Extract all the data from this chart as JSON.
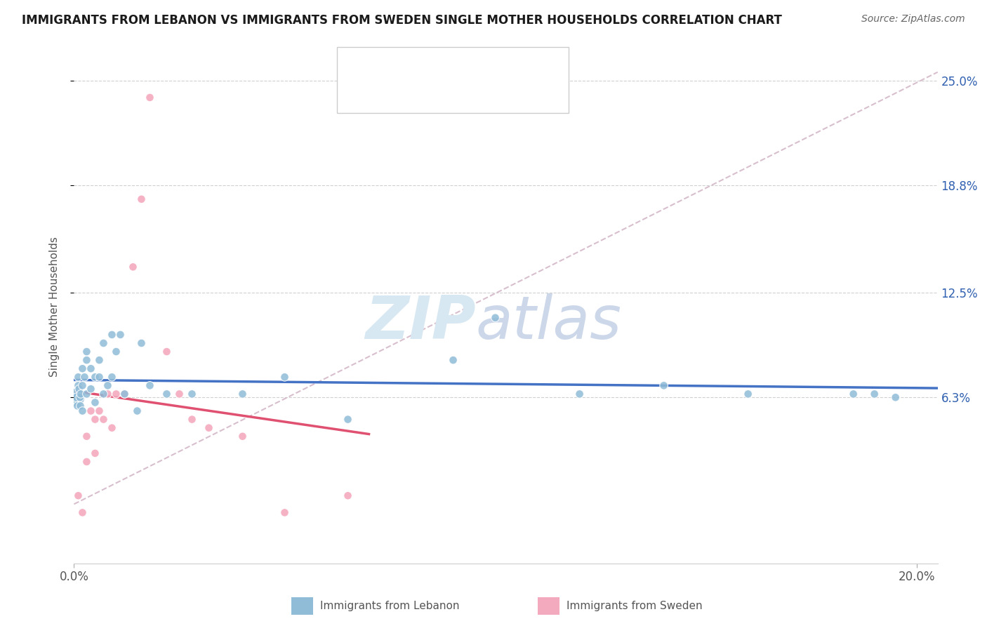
{
  "title": "IMMIGRANTS FROM LEBANON VS IMMIGRANTS FROM SWEDEN SINGLE MOTHER HOUSEHOLDS CORRELATION CHART",
  "source": "Source: ZipAtlas.com",
  "ylabel": "Single Mother Households",
  "xlim": [
    0.0,
    0.205
  ],
  "ylim": [
    -0.035,
    0.268
  ],
  "ytick_values": [
    0.063,
    0.125,
    0.188,
    0.25
  ],
  "ytick_labels": [
    "6.3%",
    "12.5%",
    "18.8%",
    "25.0%"
  ],
  "xtick_values": [
    0.0,
    0.2
  ],
  "xtick_labels": [
    "0.0%",
    "20.0%"
  ],
  "color_lebanon": "#90bcd8",
  "color_sweden": "#f4aabe",
  "color_trendline_lebanon": "#4472c4",
  "color_trendline_sweden": "#e05070",
  "color_diagonal": "#d4b8c8",
  "legend_text_color": "#3060b0",
  "lebanon_x": [
    0.0004,
    0.0006,
    0.0008,
    0.001,
    0.001,
    0.0012,
    0.0014,
    0.0015,
    0.0016,
    0.002,
    0.002,
    0.002,
    0.0025,
    0.003,
    0.003,
    0.003,
    0.004,
    0.004,
    0.005,
    0.005,
    0.006,
    0.006,
    0.007,
    0.007,
    0.008,
    0.009,
    0.009,
    0.01,
    0.011,
    0.012,
    0.015,
    0.016,
    0.018,
    0.022,
    0.028,
    0.04,
    0.05,
    0.065,
    0.09,
    0.1,
    0.12,
    0.14,
    0.16,
    0.185,
    0.19,
    0.195
  ],
  "lebanon_y": [
    0.063,
    0.063,
    0.058,
    0.07,
    0.075,
    0.068,
    0.063,
    0.058,
    0.065,
    0.07,
    0.055,
    0.08,
    0.075,
    0.065,
    0.085,
    0.09,
    0.068,
    0.08,
    0.06,
    0.075,
    0.075,
    0.085,
    0.065,
    0.095,
    0.07,
    0.1,
    0.075,
    0.09,
    0.1,
    0.065,
    0.055,
    0.095,
    0.07,
    0.065,
    0.065,
    0.065,
    0.075,
    0.05,
    0.085,
    0.11,
    0.065,
    0.07,
    0.065,
    0.065,
    0.065,
    0.063
  ],
  "lebanon_sizes": [
    350,
    80,
    70,
    70,
    70,
    70,
    70,
    70,
    70,
    70,
    70,
    70,
    70,
    70,
    70,
    70,
    70,
    70,
    70,
    70,
    70,
    70,
    70,
    70,
    70,
    70,
    70,
    70,
    70,
    70,
    70,
    70,
    70,
    70,
    70,
    70,
    70,
    70,
    70,
    70,
    70,
    70,
    70,
    70,
    70,
    70
  ],
  "sweden_x": [
    0.001,
    0.002,
    0.003,
    0.003,
    0.004,
    0.005,
    0.005,
    0.006,
    0.007,
    0.008,
    0.009,
    0.01,
    0.012,
    0.014,
    0.016,
    0.018,
    0.022,
    0.025,
    0.028,
    0.032,
    0.04,
    0.05,
    0.065
  ],
  "sweden_y": [
    0.005,
    -0.005,
    0.025,
    0.04,
    0.055,
    0.03,
    0.05,
    0.055,
    0.05,
    0.065,
    0.045,
    0.065,
    0.065,
    0.14,
    0.18,
    0.24,
    0.09,
    0.065,
    0.05,
    0.045,
    0.04,
    -0.005,
    0.005
  ],
  "sweden_sizes": [
    70,
    70,
    70,
    70,
    70,
    70,
    70,
    70,
    70,
    70,
    70,
    70,
    70,
    70,
    70,
    70,
    70,
    70,
    70,
    70,
    70,
    70,
    70
  ]
}
